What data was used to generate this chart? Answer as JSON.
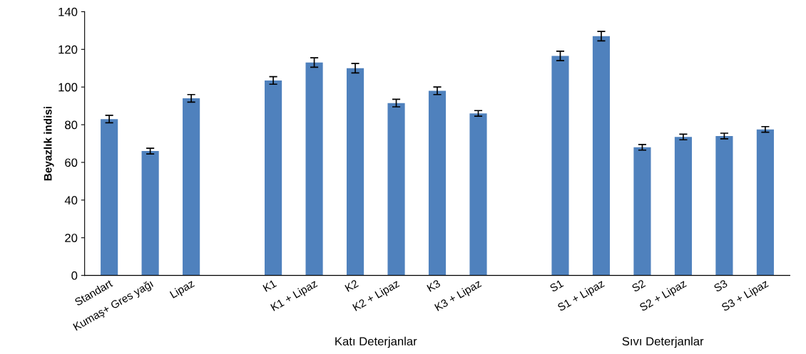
{
  "chart_data": {
    "type": "bar",
    "ylabel": "Beyazlık indisi",
    "categories": [
      "Standart",
      "Kumaş+ Gres yağı",
      "Lipaz",
      null,
      "K1",
      "K1 + Lipaz",
      "K2",
      "K2 + Lipaz",
      "K3",
      "K3 + Lipaz",
      null,
      "S1",
      "S1 + Lipaz",
      "S2",
      "S2 + Lipaz",
      "S3",
      "S3 + Lipaz"
    ],
    "values": [
      83,
      66,
      94,
      null,
      103.5,
      113,
      110,
      91.5,
      98,
      86,
      null,
      116.5,
      127,
      68,
      73.5,
      74,
      77.5
    ],
    "errors": [
      2,
      1.5,
      2,
      null,
      2,
      2.5,
      2.5,
      2,
      2,
      1.5,
      null,
      2.5,
      2.5,
      1.5,
      1.5,
      1.5,
      1.5
    ],
    "color": "#4f81bd",
    "ylim": [
      0,
      140
    ],
    "yticks": [
      0,
      20,
      40,
      60,
      80,
      100,
      120,
      140
    ],
    "grid": false,
    "legend": false,
    "annotations": [
      "Katı Deterjanlar",
      "Sıvı Deterjanlar"
    ]
  }
}
